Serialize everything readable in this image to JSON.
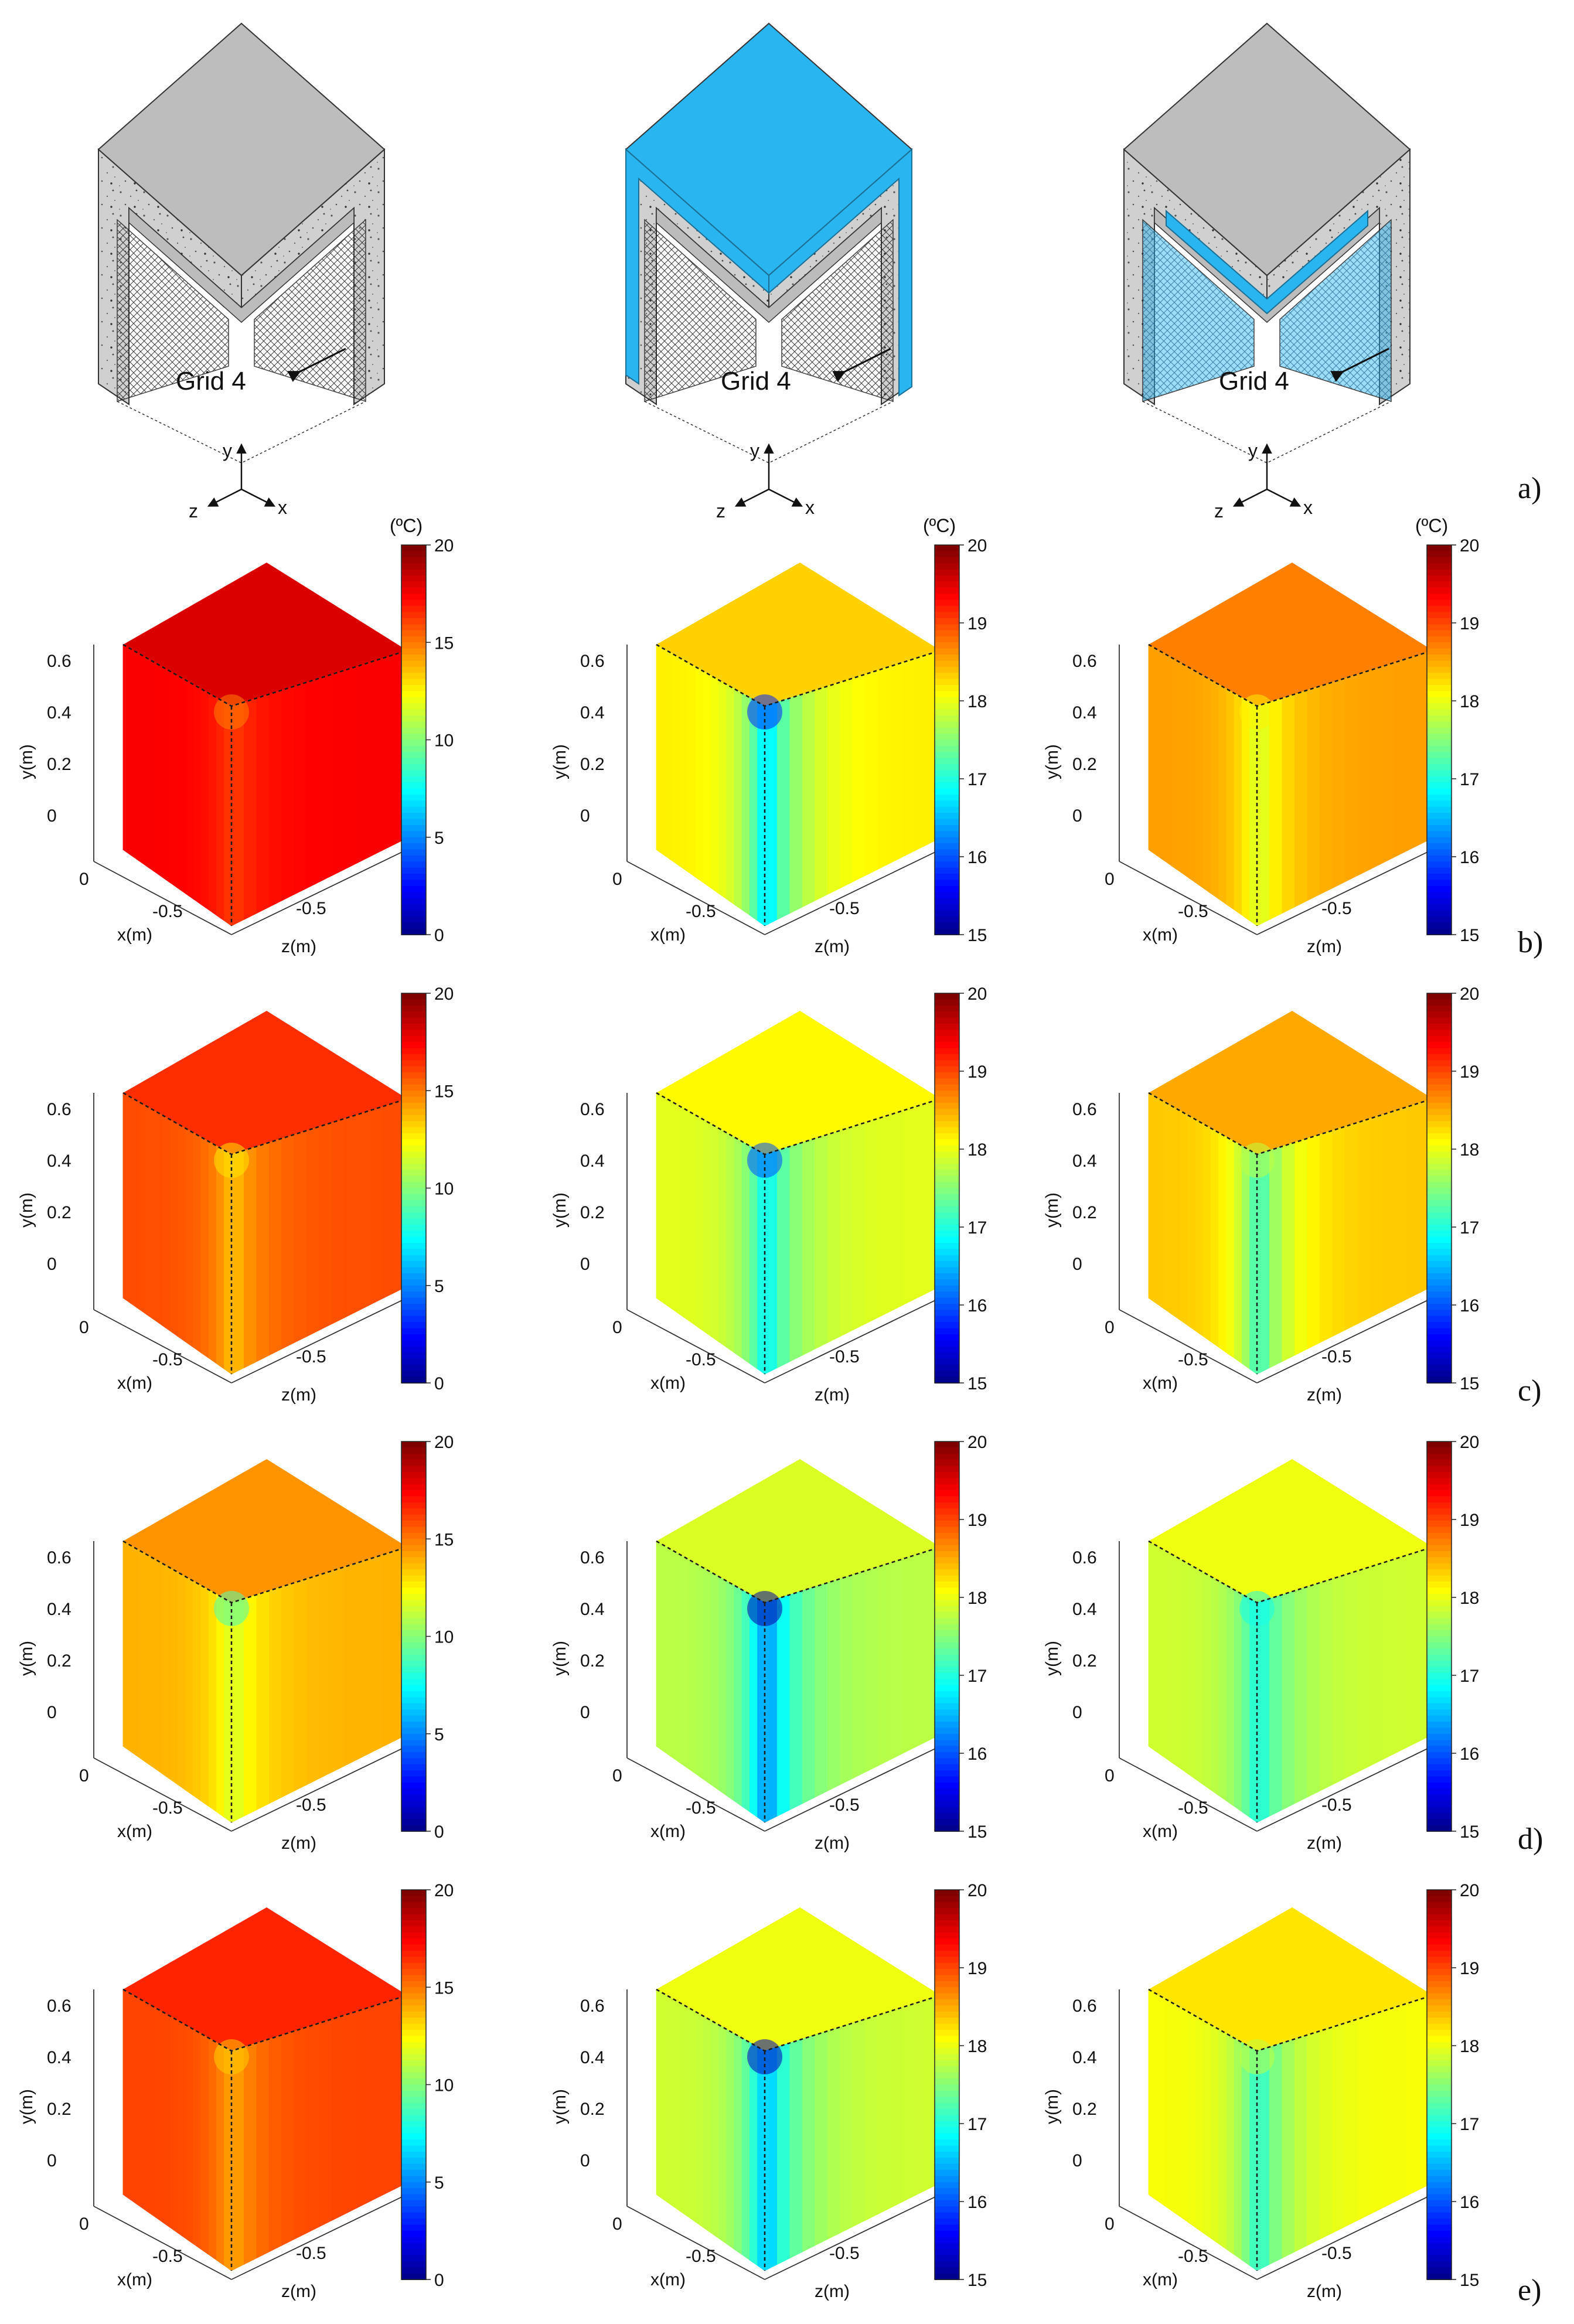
{
  "figure": {
    "row_labels": [
      "a)",
      "b)",
      "c)",
      "d)",
      "e)"
    ],
    "schematic_label": "Grid 4",
    "axis_names": {
      "x": "x",
      "y": "y",
      "z": "z"
    },
    "unit_label": "(ºC)"
  },
  "colors": {
    "concrete": "#cfcfcf",
    "concrete_top": "#bdbdbd",
    "insulation": "#29b6f0",
    "background": "#ffffff"
  },
  "chart_data": {
    "type": "heatmap",
    "axis_labels": {
      "x": "x(m)",
      "y": "y(m)",
      "z": "z(m)"
    },
    "y_ticks": [
      "0.6",
      "0.4",
      "0.2",
      "0"
    ],
    "x_ticks": [
      "0",
      "-0.5"
    ],
    "z_ticks": [
      "-0.5",
      "0"
    ],
    "colorbars": [
      {
        "unit": "(ºC)",
        "range": [
          0,
          20
        ],
        "ticks": [
          "20",
          "15",
          "10",
          "5",
          "0"
        ]
      },
      {
        "unit": "(ºC)",
        "range": [
          15,
          20
        ],
        "ticks": [
          "20",
          "19",
          "18",
          "17",
          "16",
          "15"
        ]
      },
      {
        "unit": "(ºC)",
        "range": [
          15,
          20
        ],
        "ticks": [
          "20",
          "19",
          "18",
          "17",
          "16",
          "15"
        ]
      }
    ],
    "panels": [
      {
        "row": "b)",
        "col": 1,
        "face_temp": 17.6,
        "corner_temp": 15.0,
        "edge_temp": 16.5
      },
      {
        "row": "b)",
        "col": 2,
        "face_temp": 18.2,
        "corner_temp": 15.8,
        "edge_temp": 16.9
      },
      {
        "row": "b)",
        "col": 3,
        "face_temp": 18.6,
        "corner_temp": 18.2,
        "edge_temp": 18.0
      },
      {
        "row": "c)",
        "col": 1,
        "face_temp": 16.0,
        "corner_temp": 13.0,
        "edge_temp": 14.0
      },
      {
        "row": "c)",
        "col": 2,
        "face_temp": 18.0,
        "corner_temp": 16.0,
        "edge_temp": 17.0
      },
      {
        "row": "c)",
        "col": 3,
        "face_temp": 18.4,
        "corner_temp": 17.8,
        "edge_temp": 17.3
      },
      {
        "row": "d)",
        "col": 1,
        "face_temp": 14.0,
        "corner_temp": 9.0,
        "edge_temp": 12.0
      },
      {
        "row": "d)",
        "col": 2,
        "face_temp": 17.8,
        "corner_temp": 15.2,
        "edge_temp": 16.5
      },
      {
        "row": "d)",
        "col": 3,
        "face_temp": 17.9,
        "corner_temp": 17.0,
        "edge_temp": 17.1
      },
      {
        "row": "e)",
        "col": 1,
        "face_temp": 16.2,
        "corner_temp": 13.5,
        "edge_temp": 14.5
      },
      {
        "row": "e)",
        "col": 2,
        "face_temp": 17.9,
        "corner_temp": 15.3,
        "edge_temp": 16.7
      },
      {
        "row": "e)",
        "col": 3,
        "face_temp": 18.1,
        "corner_temp": 17.8,
        "edge_temp": 17.2
      }
    ]
  }
}
